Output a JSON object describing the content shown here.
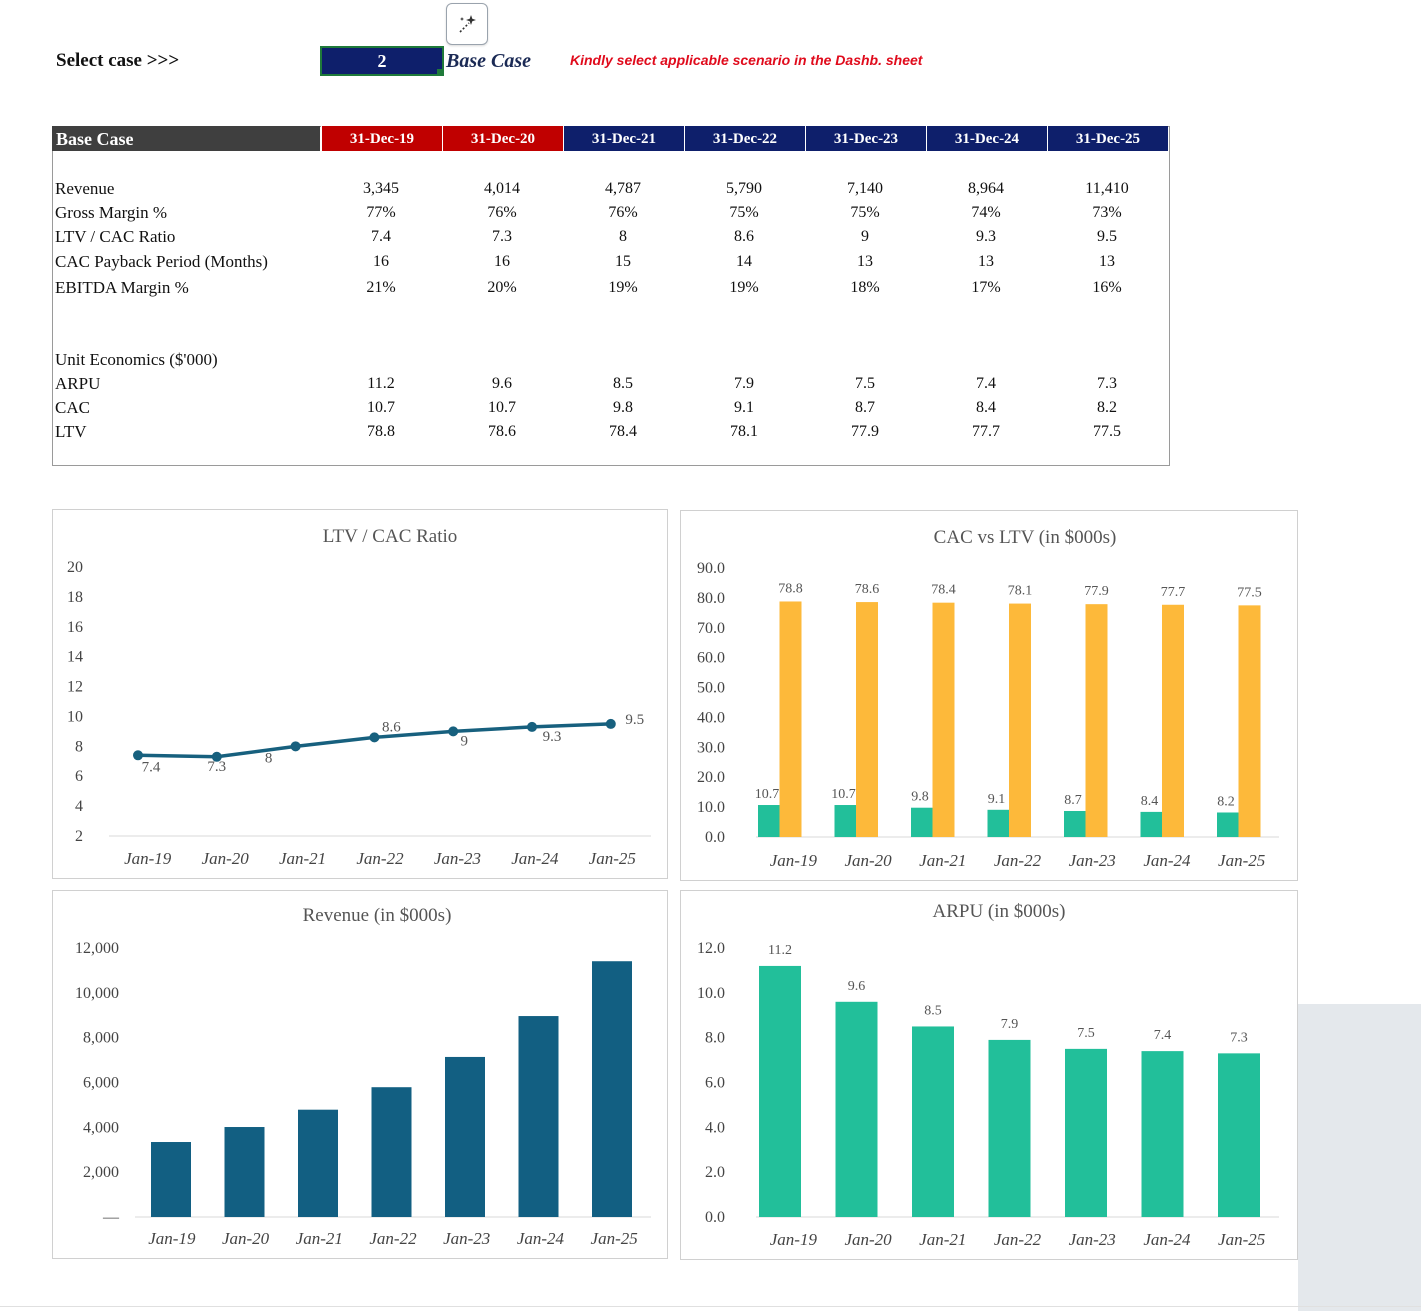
{
  "toolbar": {
    "magic_icon": "magic-wand-sparkle-icon"
  },
  "selector": {
    "label": "Select case >>>",
    "value": "2",
    "case_name": "Base Case",
    "notice": "Kindly select applicable scenario in the Dashb. sheet"
  },
  "table": {
    "title": "Base Case",
    "columns": [
      "31-Dec-19",
      "31-Dec-20",
      "31-Dec-21",
      "31-Dec-22",
      "31-Dec-23",
      "31-Dec-24",
      "31-Dec-25"
    ],
    "header_colors": [
      "#c00000",
      "#c00000",
      "#0e1f6b",
      "#0e1f6b",
      "#0e1f6b",
      "#0e1f6b",
      "#0e1f6b"
    ],
    "rows": [
      {
        "label": "Revenue",
        "values": [
          "3,345",
          "4,014",
          "4,787",
          "5,790",
          "7,140",
          "8,964",
          "11,410"
        ]
      },
      {
        "label": "Gross Margin %",
        "values": [
          "77%",
          "76%",
          "76%",
          "75%",
          "75%",
          "74%",
          "73%"
        ]
      },
      {
        "label": "LTV / CAC Ratio",
        "values": [
          "7.4",
          "7.3",
          "8",
          "8.6",
          "9",
          "9.3",
          "9.5"
        ]
      },
      {
        "label": "CAC Payback Period (Months)",
        "values": [
          "16",
          "16",
          "15",
          "14",
          "13",
          "13",
          "13"
        ]
      },
      {
        "label": "EBITDA Margin %",
        "values": [
          "21%",
          "20%",
          "19%",
          "19%",
          "18%",
          "17%",
          "16%"
        ]
      }
    ],
    "section_label": "Unit Economics ($'000)",
    "unit_rows": [
      {
        "label": "ARPU",
        "values": [
          "11.2",
          "9.6",
          "8.5",
          "7.9",
          "7.5",
          "7.4",
          "7.3"
        ]
      },
      {
        "label": "CAC",
        "values": [
          "10.7",
          "10.7",
          "9.8",
          "9.1",
          "8.7",
          "8.4",
          "8.2"
        ]
      },
      {
        "label": "LTV",
        "values": [
          "78.8",
          "78.6",
          "78.4",
          "78.1",
          "77.9",
          "77.7",
          "77.5"
        ]
      }
    ]
  },
  "chart_data": [
    {
      "id": "ltv-cac-chart",
      "type": "line",
      "title": "LTV / CAC Ratio",
      "categories": [
        "Jan-19",
        "Jan-20",
        "Jan-21",
        "Jan-22",
        "Jan-23",
        "Jan-24",
        "Jan-25"
      ],
      "values": [
        7.4,
        7.3,
        8,
        8.6,
        9,
        9.3,
        9.5
      ],
      "data_labels": [
        "7.4",
        "7.3",
        "8",
        "8.6",
        "9",
        "9.3",
        "9.5"
      ],
      "y_ticks": [
        "20",
        "18",
        "16",
        "14",
        "12",
        "10",
        "8",
        "6",
        "4",
        "2"
      ],
      "ylim": [
        2,
        20
      ],
      "color": "#17607e",
      "grid": false,
      "legend": "none"
    },
    {
      "id": "cac-ltv-chart",
      "type": "bar",
      "title": "CAC vs LTV (in $000s)",
      "categories": [
        "Jan-19",
        "Jan-20",
        "Jan-21",
        "Jan-22",
        "Jan-23",
        "Jan-24",
        "Jan-25"
      ],
      "series": [
        {
          "values": [
            10.7,
            10.7,
            9.8,
            9.1,
            8.7,
            8.4,
            8.2
          ],
          "labels": [
            "10.7",
            "10.7",
            "9.8",
            "9.1",
            "8.7",
            "8.4",
            "8.2"
          ],
          "color": "#22bf9a"
        },
        {
          "values": [
            78.8,
            78.6,
            78.4,
            78.1,
            77.9,
            77.7,
            77.5
          ],
          "labels": [
            "78.8",
            "78.6",
            "78.4",
            "78.1",
            "77.9",
            "77.7",
            "77.5"
          ],
          "color": "#fdb93a"
        }
      ],
      "y_ticks": [
        "90.0",
        "80.0",
        "70.0",
        "60.0",
        "50.0",
        "40.0",
        "30.0",
        "20.0",
        "10.0",
        "0.0"
      ],
      "ylim": [
        0,
        90
      ],
      "grid": false,
      "legend": "none"
    },
    {
      "id": "revenue-chart",
      "type": "bar",
      "title": "Revenue (in $000s)",
      "categories": [
        "Jan-19",
        "Jan-20",
        "Jan-21",
        "Jan-22",
        "Jan-23",
        "Jan-24",
        "Jan-25"
      ],
      "values": [
        3345,
        4014,
        4787,
        5790,
        7140,
        8964,
        11410
      ],
      "y_ticks": [
        "12,000",
        "10,000",
        "8,000",
        "6,000",
        "4,000",
        "2,000",
        "—"
      ],
      "ylim": [
        0,
        12000
      ],
      "color": "#125f82",
      "grid": false,
      "legend": "none"
    },
    {
      "id": "arpu-chart",
      "type": "bar",
      "title": "ARPU (in $000s)",
      "categories": [
        "Jan-19",
        "Jan-20",
        "Jan-21",
        "Jan-22",
        "Jan-23",
        "Jan-24",
        "Jan-25"
      ],
      "values": [
        11.2,
        9.6,
        8.5,
        7.9,
        7.5,
        7.4,
        7.3
      ],
      "data_labels": [
        "11.2",
        "9.6",
        "8.5",
        "7.9",
        "7.5",
        "7.4",
        "7.3"
      ],
      "y_ticks": [
        "12.0",
        "10.0",
        "8.0",
        "6.0",
        "4.0",
        "2.0",
        "0.0"
      ],
      "ylim": [
        0,
        12
      ],
      "color": "#22bf9a",
      "grid": false,
      "legend": "none"
    }
  ]
}
